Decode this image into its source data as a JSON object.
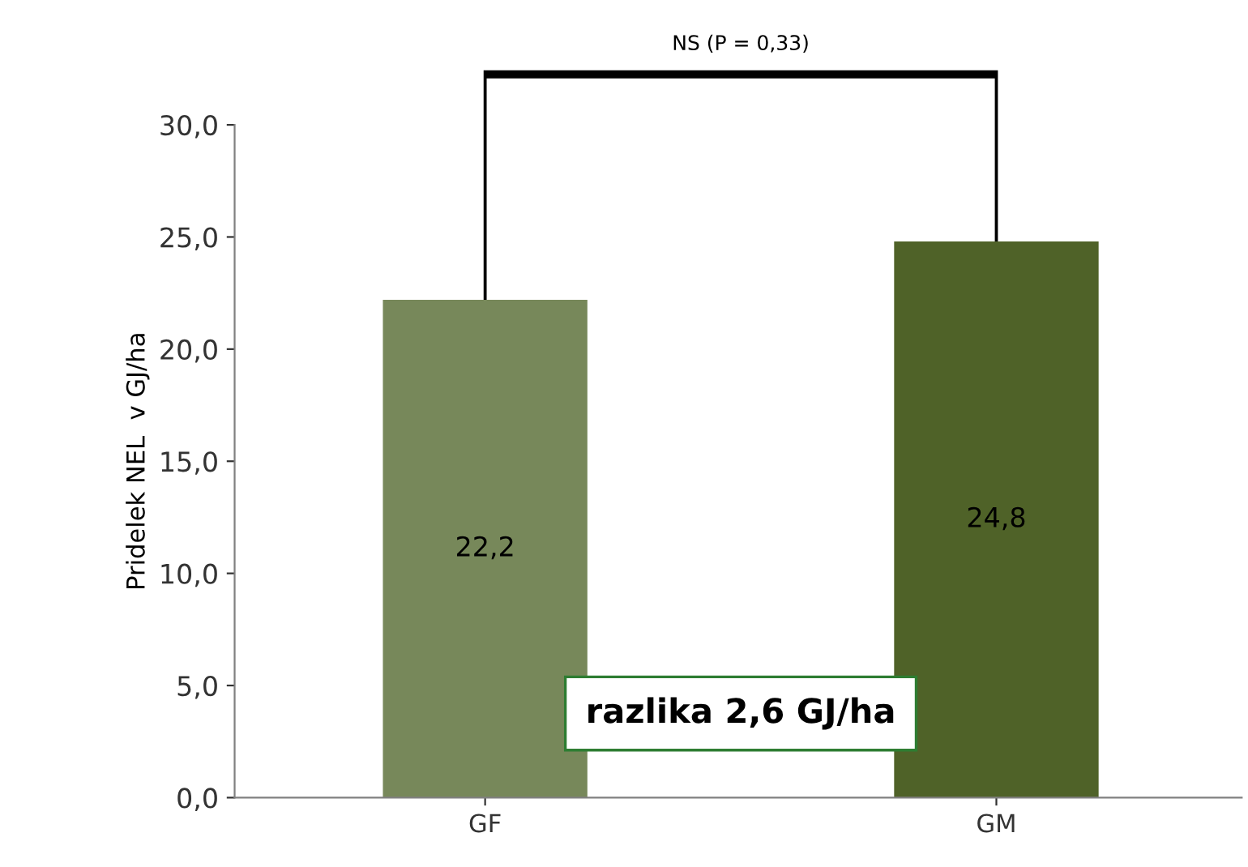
{
  "chart_data": {
    "type": "bar",
    "ylabel": "Pridelek NEL  v GJ/ha",
    "categories": [
      "GF",
      "GM"
    ],
    "values": [
      22.2,
      24.8
    ],
    "colors": [
      "#77885a",
      "#4f6228"
    ],
    "value_labels": [
      "22,2",
      "24,8"
    ],
    "ylim": [
      0,
      30
    ],
    "yticks": [
      {
        "value": 0,
        "label": "0,0"
      },
      {
        "value": 5,
        "label": "5,0"
      },
      {
        "value": 10,
        "label": "10,0"
      },
      {
        "value": 15,
        "label": "15,0"
      },
      {
        "value": 20,
        "label": "20,0"
      },
      {
        "value": 25,
        "label": "25,0"
      },
      {
        "value": 30,
        "label": "30,0"
      }
    ],
    "grid": false,
    "legend": false,
    "annotations": [
      "NS (P = 0,33)",
      "razlika 2,6 GJ/ha"
    ]
  }
}
